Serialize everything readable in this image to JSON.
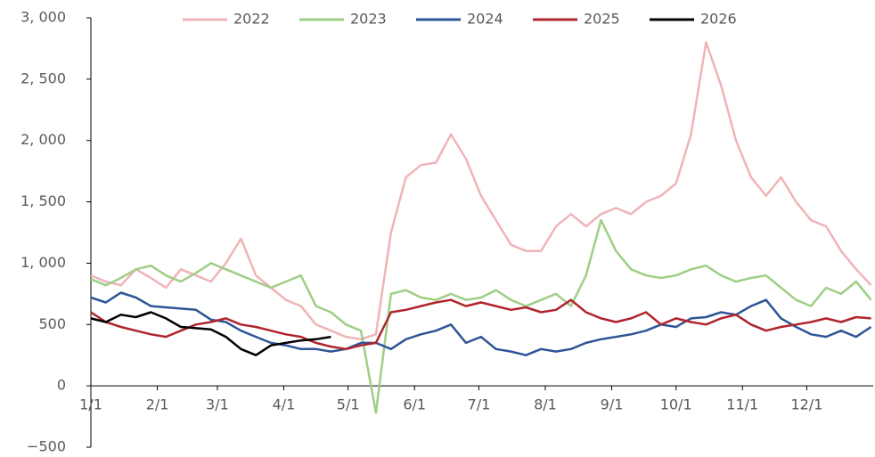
{
  "chart_data": {
    "type": "line",
    "x": [
      0,
      7,
      14,
      21,
      28,
      35,
      42,
      49,
      56,
      63,
      70,
      77,
      84,
      91,
      98,
      105,
      112,
      119,
      126,
      133,
      140,
      147,
      154,
      161,
      168,
      175,
      182,
      189,
      196,
      203,
      210,
      217,
      224,
      231,
      238,
      245,
      252,
      259,
      266,
      273,
      280,
      287,
      294,
      301,
      308,
      315,
      322,
      329,
      336,
      343,
      350,
      357,
      364
    ],
    "xlim": [
      0,
      365
    ],
    "xticks": [
      {
        "value": 0,
        "label": "1/1"
      },
      {
        "value": 31,
        "label": "2/1"
      },
      {
        "value": 59,
        "label": "3/1"
      },
      {
        "value": 90,
        "label": "4/1"
      },
      {
        "value": 120,
        "label": "5/1"
      },
      {
        "value": 151,
        "label": "6/1"
      },
      {
        "value": 181,
        "label": "7/1"
      },
      {
        "value": 212,
        "label": "8/1"
      },
      {
        "value": 243,
        "label": "9/1"
      },
      {
        "value": 273,
        "label": "10/1"
      },
      {
        "value": 304,
        "label": "11/1"
      },
      {
        "value": 334,
        "label": "12/1"
      }
    ],
    "ylim": [
      -500,
      3000
    ],
    "yticks": [
      {
        "value": -500,
        "label": "−500"
      },
      0,
      500,
      {
        "value": 1000,
        "label": "1, 000"
      },
      {
        "value": 1500,
        "label": "1, 500"
      },
      {
        "value": 2000,
        "label": "2, 000"
      },
      {
        "value": 2500,
        "label": "2, 500"
      },
      {
        "value": 3000,
        "label": "3, 000"
      }
    ],
    "series": [
      {
        "name": "2022",
        "color": "#f0b4b8",
        "values": [
          900,
          850,
          820,
          950,
          880,
          800,
          950,
          900,
          850,
          1000,
          1200,
          900,
          800,
          700,
          650,
          500,
          450,
          400,
          380,
          420,
          1250,
          1700,
          1800,
          1820,
          2050,
          1850,
          1550,
          1350,
          1150,
          1100,
          1100,
          1300,
          1400,
          1300,
          1400,
          1450,
          1400,
          1500,
          1550,
          1650,
          2050,
          2800,
          2450,
          2000,
          1700,
          1550,
          1700,
          1500,
          1350,
          1300,
          1100,
          950,
          820
        ]
      },
      {
        "name": "2023",
        "color": "#9fce86",
        "values": [
          870,
          820,
          880,
          950,
          980,
          900,
          850,
          920,
          1000,
          950,
          900,
          850,
          800,
          850,
          900,
          650,
          600,
          500,
          450,
          -220,
          750,
          780,
          720,
          700,
          750,
          700,
          720,
          780,
          700,
          650,
          700,
          750,
          650,
          900,
          1350,
          1100,
          950,
          900,
          880,
          900,
          950,
          980,
          900,
          850,
          880,
          900,
          800,
          700,
          650,
          800,
          750,
          850,
          700
        ]
      },
      {
        "name": "2024",
        "color": "#2e5597",
        "values": [
          720,
          680,
          760,
          720,
          650,
          640,
          630,
          620,
          540,
          520,
          450,
          400,
          350,
          330,
          300,
          300,
          280,
          300,
          350,
          350,
          300,
          380,
          420,
          450,
          500,
          350,
          400,
          300,
          280,
          250,
          300,
          280,
          300,
          350,
          380,
          400,
          420,
          450,
          500,
          480,
          550,
          560,
          600,
          580,
          650,
          700,
          550,
          480,
          420,
          400,
          450,
          400,
          480
        ]
      },
      {
        "name": "2025",
        "color": "#b0242c",
        "values": [
          600,
          520,
          480,
          450,
          420,
          400,
          450,
          500,
          520,
          550,
          500,
          480,
          450,
          420,
          400,
          350,
          320,
          300,
          330,
          350,
          600,
          620,
          650,
          680,
          700,
          650,
          680,
          650,
          620,
          640,
          600,
          620,
          700,
          600,
          550,
          520,
          550,
          600,
          500,
          550,
          520,
          500,
          550,
          580,
          500,
          450,
          480,
          500,
          520,
          550,
          520,
          560,
          550
        ]
      },
      {
        "name": "2026",
        "color": "#000000",
        "values": [
          550,
          520,
          580,
          560,
          600,
          550,
          480,
          470,
          460,
          400,
          300,
          250,
          330,
          350,
          370,
          380,
          400,
          null,
          null,
          null,
          null,
          null,
          null,
          null,
          null,
          null,
          null,
          null,
          null,
          null,
          null,
          null,
          null,
          null,
          null,
          null,
          null,
          null,
          null,
          null,
          null,
          null,
          null,
          null,
          null,
          null,
          null,
          null,
          null,
          null,
          null,
          null,
          null
        ]
      }
    ]
  }
}
